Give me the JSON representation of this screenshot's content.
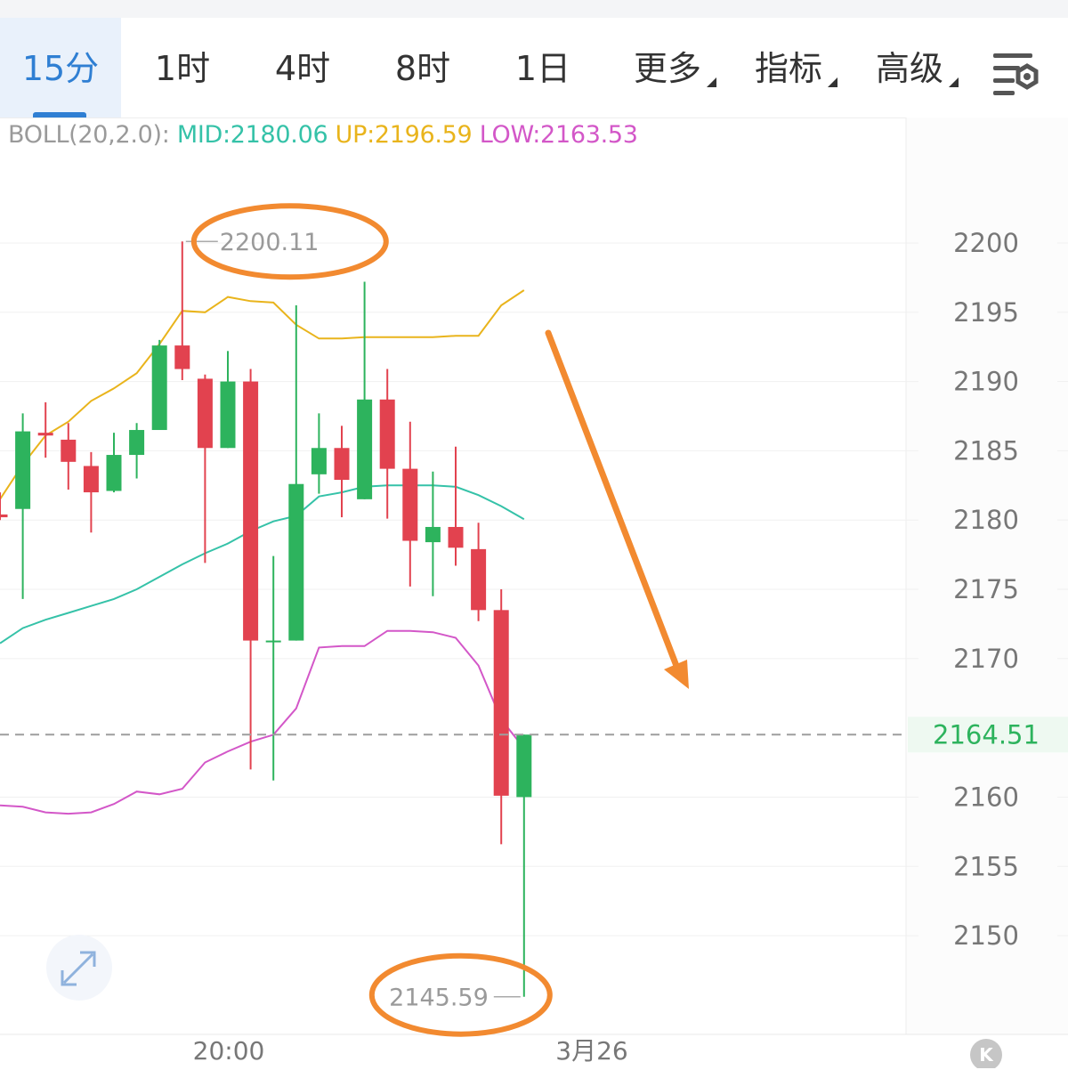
{
  "tabs": [
    {
      "label": "15分",
      "active": true
    },
    {
      "label": "1时"
    },
    {
      "label": "4时"
    },
    {
      "label": "8时"
    },
    {
      "label": "1日"
    },
    {
      "label": "更多",
      "dropdown": true
    },
    {
      "label": "指标",
      "dropdown": true
    },
    {
      "label": "高级",
      "dropdown": true
    }
  ],
  "settings_icon": "chart-settings-icon",
  "indicator": {
    "params": "BOLL(20,2.0):",
    "mid": "MID:2180.06",
    "up": "UP:2196.59",
    "low": "LOW:2163.53"
  },
  "colors": {
    "up_candle": "#2db35d",
    "down_candle": "#e2424f",
    "mid_line": "#35c2a8",
    "upper_line": "#e9b41c",
    "lower_line": "#d357c8",
    "annotation": "#f28a30",
    "active_tab": "#2f7fd3",
    "last_price": "#2db35d"
  },
  "chart_data": {
    "type": "candlestick",
    "interval": "15分",
    "ylim": [
      2143,
      2207
    ],
    "y_ticks": [
      "2200",
      "2195",
      "2190",
      "2185",
      "2180",
      "2175",
      "2170",
      "2160",
      "2155",
      "2150"
    ],
    "x_ticks": [
      "20:00",
      "3月26"
    ],
    "last_price": "2164.51",
    "high_label": "2200.11",
    "low_label": "2145.59",
    "candles": [
      {
        "o": 2180.4,
        "h": 2182.0,
        "l": 2180.0,
        "c": 2180.2
      },
      {
        "o": 2180.8,
        "h": 2187.7,
        "l": 2174.3,
        "c": 2186.4
      },
      {
        "o": 2186.3,
        "h": 2188.5,
        "l": 2184.5,
        "c": 2186.1
      },
      {
        "o": 2185.8,
        "h": 2187.0,
        "l": 2182.2,
        "c": 2184.2
      },
      {
        "o": 2183.9,
        "h": 2184.9,
        "l": 2179.1,
        "c": 2182.0
      },
      {
        "o": 2182.1,
        "h": 2186.3,
        "l": 2182.0,
        "c": 2184.7
      },
      {
        "o": 2184.7,
        "h": 2187.0,
        "l": 2183.0,
        "c": 2186.5
      },
      {
        "o": 2186.5,
        "h": 2193.0,
        "l": 2186.5,
        "c": 2192.6
      },
      {
        "o": 2192.6,
        "h": 2200.11,
        "l": 2190.1,
        "c": 2190.9
      },
      {
        "o": 2190.2,
        "h": 2190.5,
        "l": 2176.9,
        "c": 2185.2
      },
      {
        "o": 2185.2,
        "h": 2192.2,
        "l": 2185.2,
        "c": 2190.0
      },
      {
        "o": 2190.0,
        "h": 2190.9,
        "l": 2162.0,
        "c": 2171.3
      },
      {
        "o": 2171.3,
        "h": 2177.4,
        "l": 2161.2,
        "c": 2171.3
      },
      {
        "o": 2171.3,
        "h": 2195.5,
        "l": 2171.3,
        "c": 2182.6
      },
      {
        "o": 2183.3,
        "h": 2187.7,
        "l": 2181.9,
        "c": 2185.2
      },
      {
        "o": 2185.2,
        "h": 2186.8,
        "l": 2180.2,
        "c": 2182.9
      },
      {
        "o": 2181.5,
        "h": 2197.2,
        "l": 2181.5,
        "c": 2188.7
      },
      {
        "o": 2188.7,
        "h": 2190.9,
        "l": 2180.1,
        "c": 2183.7
      },
      {
        "o": 2183.7,
        "h": 2187.1,
        "l": 2175.2,
        "c": 2178.5
      },
      {
        "o": 2178.4,
        "h": 2183.5,
        "l": 2174.5,
        "c": 2179.5
      },
      {
        "o": 2179.5,
        "h": 2185.3,
        "l": 2176.7,
        "c": 2178.0
      },
      {
        "o": 2177.9,
        "h": 2179.8,
        "l": 2172.7,
        "c": 2173.5
      },
      {
        "o": 2173.5,
        "h": 2175.0,
        "l": 2156.6,
        "c": 2160.1
      },
      {
        "o": 2160.0,
        "h": 2164.51,
        "l": 2145.59,
        "c": 2164.51
      }
    ],
    "series": [
      {
        "name": "UP",
        "values": [
          2181.5,
          2184.0,
          2186.1,
          2187.1,
          2188.6,
          2189.5,
          2190.6,
          2192.7,
          2195.1,
          2195.0,
          2196.1,
          2195.8,
          2195.7,
          2194.1,
          2193.1,
          2193.1,
          2193.2,
          2193.2,
          2193.2,
          2193.2,
          2193.3,
          2193.3,
          2195.5,
          2196.59
        ]
      },
      {
        "name": "MID",
        "values": [
          2171.1,
          2172.2,
          2172.8,
          2173.3,
          2173.8,
          2174.3,
          2175.0,
          2175.9,
          2176.8,
          2177.6,
          2178.3,
          2179.2,
          2179.9,
          2180.3,
          2181.7,
          2182.0,
          2182.4,
          2182.5,
          2182.5,
          2182.5,
          2182.4,
          2181.8,
          2181.0,
          2180.06
        ]
      },
      {
        "name": "LOW",
        "values": [
          2159.4,
          2159.3,
          2158.9,
          2158.8,
          2158.9,
          2159.5,
          2160.4,
          2160.2,
          2160.6,
          2162.5,
          2163.3,
          2164.0,
          2164.5,
          2166.4,
          2170.8,
          2170.9,
          2170.9,
          2172.0,
          2172.0,
          2171.9,
          2171.5,
          2169.5,
          2165.6,
          2163.53
        ]
      }
    ]
  }
}
